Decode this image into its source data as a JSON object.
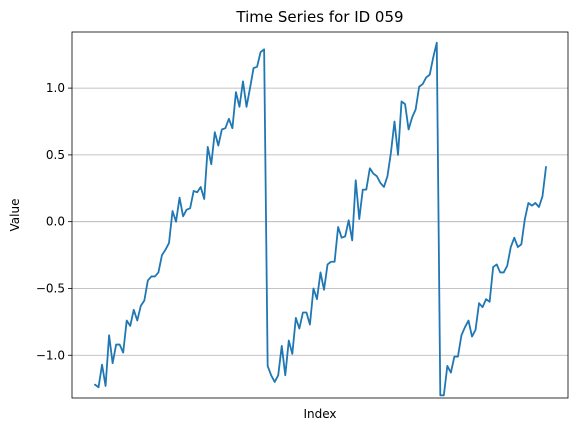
{
  "chart_data": {
    "type": "line",
    "title": "Time Series for ID 059",
    "xlabel": "Index",
    "ylabel": "Value",
    "ylim": [
      -1.32,
      1.42
    ],
    "yticks": [
      1.0,
      0.5,
      0.0,
      -0.5,
      -1.0
    ],
    "ytick_labels": [
      "1.0",
      "0.5",
      "0.0",
      "−0.5",
      "−1.0"
    ],
    "ygrid": true,
    "xticks_visible": false,
    "line_color": "#1f77b4",
    "series": [
      {
        "values": [
          -1.22,
          -1.24,
          -1.07,
          -1.23,
          -0.85,
          -1.06,
          -0.92,
          -0.92,
          -0.98,
          -0.74,
          -0.78,
          -0.66,
          -0.74,
          -0.63,
          -0.59,
          -0.44,
          -0.41,
          -0.41,
          -0.38,
          -0.25,
          -0.21,
          -0.16,
          0.08,
          0.0,
          0.18,
          0.04,
          0.09,
          0.1,
          0.23,
          0.22,
          0.26,
          0.17,
          0.56,
          0.43,
          0.67,
          0.57,
          0.69,
          0.7,
          0.77,
          0.7,
          0.97,
          0.86,
          1.05,
          0.86,
          1.0,
          1.15,
          1.16,
          1.27,
          1.29,
          -1.08,
          -1.15,
          -1.2,
          -1.15,
          -0.93,
          -1.15,
          -0.89,
          -0.99,
          -0.72,
          -0.8,
          -0.68,
          -0.68,
          -0.77,
          -0.5,
          -0.58,
          -0.38,
          -0.51,
          -0.32,
          -0.3,
          -0.3,
          -0.04,
          -0.12,
          -0.11,
          0.01,
          -0.14,
          0.31,
          0.02,
          0.24,
          0.24,
          0.4,
          0.36,
          0.34,
          0.29,
          0.26,
          0.34,
          0.52,
          0.75,
          0.5,
          0.9,
          0.88,
          0.69,
          0.78,
          0.84,
          1.01,
          1.03,
          1.08,
          1.1,
          1.23,
          1.34,
          -1.3,
          -1.3,
          -1.08,
          -1.13,
          -1.01,
          -1.01,
          -0.85,
          -0.79,
          -0.74,
          -0.86,
          -0.81,
          -0.61,
          -0.64,
          -0.58,
          -0.6,
          -0.34,
          -0.32,
          -0.38,
          -0.38,
          -0.33,
          -0.19,
          -0.12,
          -0.19,
          -0.17,
          0.02,
          0.14,
          0.12,
          0.14,
          0.11,
          0.19,
          0.41
        ]
      }
    ]
  }
}
